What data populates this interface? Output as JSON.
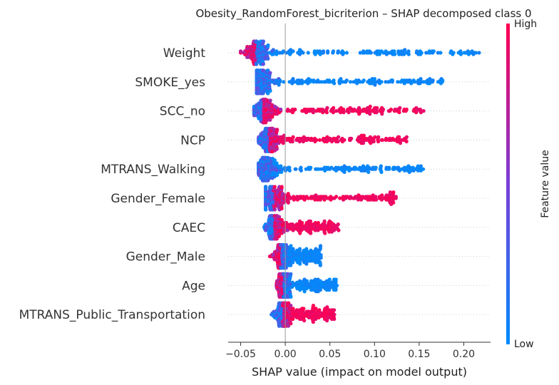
{
  "chart_data": {
    "type": "scatter",
    "subtype": "shap-beeswarm",
    "title": "Obesity_RandomForest_bicriterion – SHAP decomposed class 0",
    "xlabel": "SHAP value (impact on model output)",
    "xlim": [
      -0.064,
      0.23
    ],
    "xticks": [
      -0.05,
      0.0,
      0.05,
      0.1,
      0.15,
      0.2
    ],
    "xtick_labels": [
      "−0.05",
      "0.00",
      "0.05",
      "0.10",
      "0.15",
      "0.20"
    ],
    "colorbar": {
      "label": "Feature value",
      "high": "High",
      "low": "Low",
      "low_color": "#008bfb",
      "high_color": "#ff0052"
    },
    "features": [
      {
        "name": "Weight",
        "center": -0.033,
        "lo": -0.05,
        "hi": 0.218,
        "core": 0.025,
        "low_side": "right"
      },
      {
        "name": "SMOKE_yes",
        "center": -0.025,
        "lo": -0.032,
        "hi": 0.178,
        "core": 0.02,
        "low_side": "all"
      },
      {
        "name": "SCC_no",
        "center": -0.025,
        "lo": -0.035,
        "hi": 0.155,
        "core": 0.022,
        "low_side": "left"
      },
      {
        "name": "NCP",
        "center": -0.018,
        "lo": -0.03,
        "hi": 0.137,
        "core": 0.02,
        "low_side": "left"
      },
      {
        "name": "MTRANS_Walking",
        "center": -0.02,
        "lo": -0.03,
        "hi": 0.157,
        "core": 0.02,
        "low_side": "all"
      },
      {
        "name": "Gender_Female",
        "center": -0.013,
        "lo": -0.022,
        "hi": 0.125,
        "core": 0.02,
        "low_side": "left"
      },
      {
        "name": "CAEC",
        "center": -0.012,
        "lo": -0.03,
        "hi": 0.06,
        "core": 0.015,
        "low_side": "left"
      },
      {
        "name": "Gender_Male",
        "center": -0.005,
        "lo": -0.03,
        "hi": 0.04,
        "core": 0.015,
        "low_side": "right"
      },
      {
        "name": "Age",
        "center": -0.002,
        "lo": -0.022,
        "hi": 0.058,
        "core": 0.012,
        "low_side": "right"
      },
      {
        "name": "MTRANS_Public_Transportation",
        "center": -0.003,
        "lo": -0.025,
        "hi": 0.055,
        "core": 0.015,
        "low_side": "left"
      }
    ]
  }
}
